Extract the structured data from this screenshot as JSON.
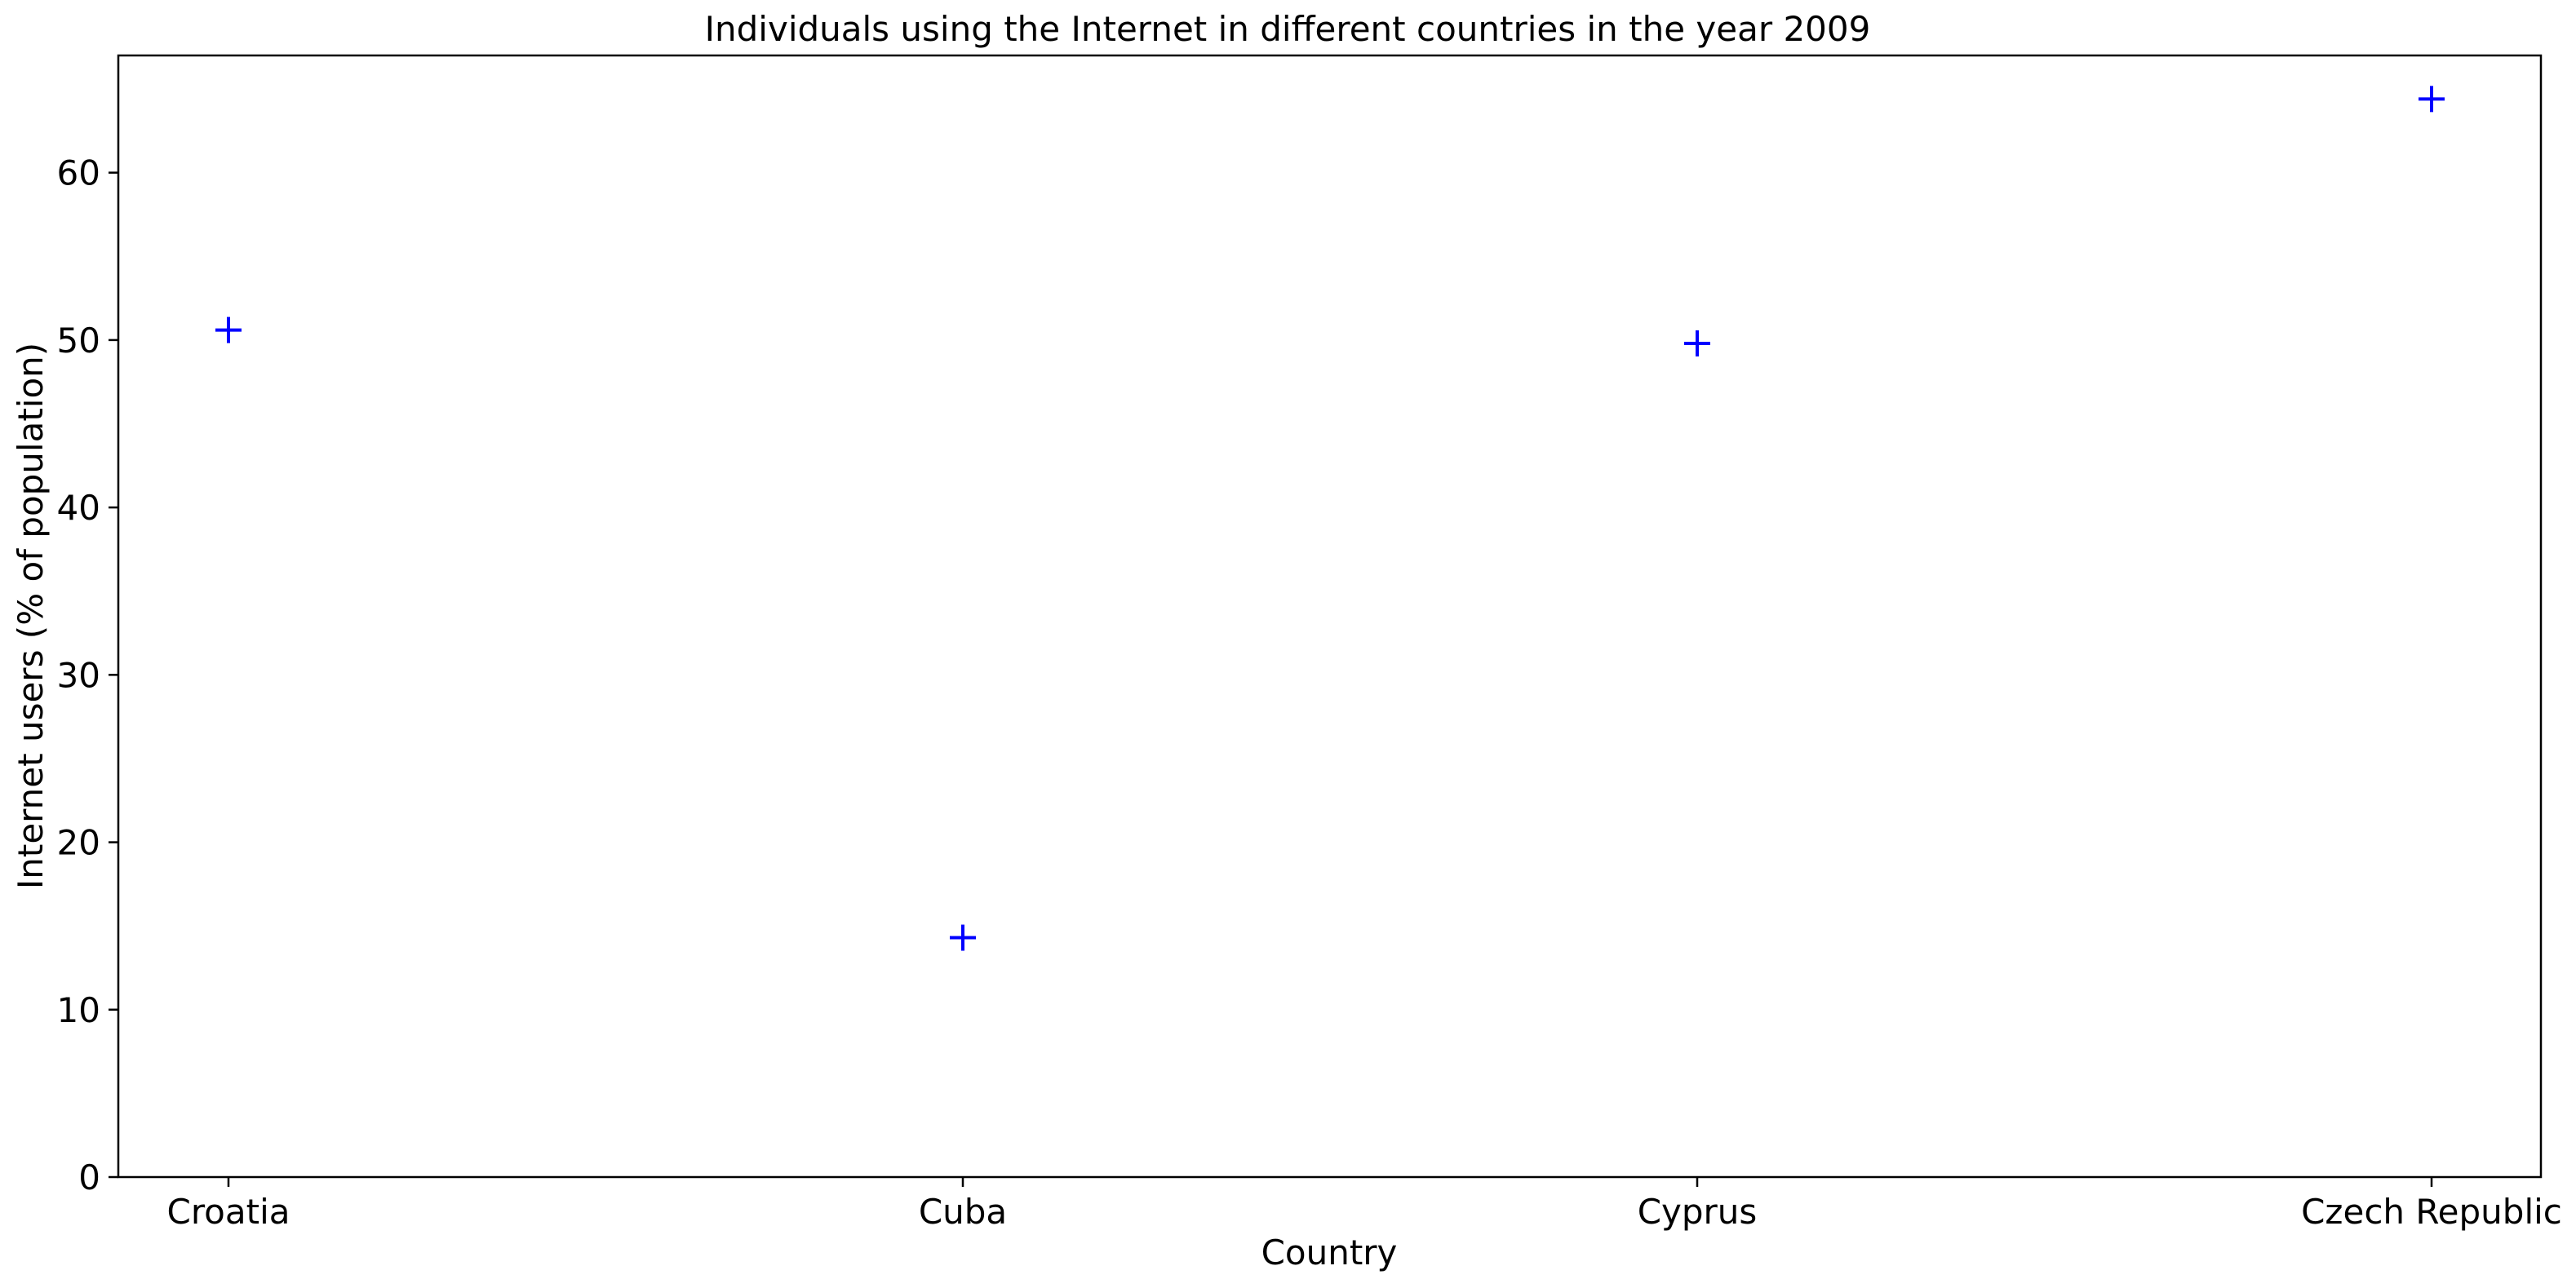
{
  "chart_data": {
    "type": "scatter",
    "title": "Individuals using the Internet in different countries in the year 2009",
    "xlabel": "Country",
    "ylabel": "Internet users (% of population)",
    "categories": [
      "Croatia",
      "Cuba",
      "Cyprus",
      "Czech Republic"
    ],
    "series": [
      {
        "values": [
          50.6,
          14.3,
          49.8,
          64.4
        ],
        "marker": "plus",
        "color": "#0000ff"
      }
    ],
    "ylim": [
      0,
      67
    ],
    "yticks": [
      0,
      10,
      20,
      30,
      40,
      50,
      60
    ],
    "grid": false,
    "legend": "none"
  }
}
